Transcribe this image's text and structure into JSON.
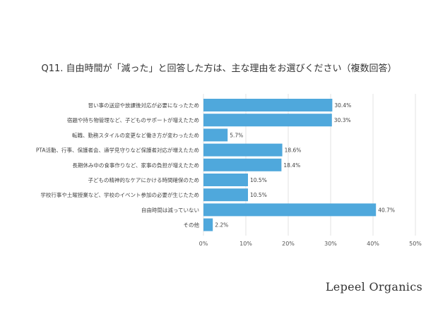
{
  "chart_data": {
    "type": "bar",
    "orientation": "horizontal",
    "title": "Q11. 自由時間が「減った」と回答した方は、主な理由をお選びください（複数回答）",
    "categories": [
      "習い事の送迎や放課後対応が必要になったため",
      "宿題や持ち物管理など、子どものサポートが増えたため",
      "転職、勤務スタイルの変更など働き方が変わったため",
      "PTA活動、行事、保護者会、通学見守りなど保護者対応が増えたため",
      "長期休み中の食事作りなど、家事の負担が増えたため",
      "子どもの精神的なケアにかける時間確保のため",
      "学校行事や土曜授業など、学校のイベント参加の必要が生じたため",
      "自由時間は減っていない",
      "その他"
    ],
    "values": [
      30.4,
      30.3,
      5.7,
      18.6,
      18.4,
      10.5,
      10.5,
      40.7,
      2.2
    ],
    "value_labels": [
      "30.4%",
      "30.3%",
      "5.7%",
      "18.6%",
      "18.4%",
      "10.5%",
      "10.5%",
      "40.7%",
      "2.2%"
    ],
    "xlim": [
      0,
      50
    ],
    "ticks": [
      0,
      10,
      20,
      30,
      40,
      50
    ],
    "tick_labels": [
      "0%",
      "10%",
      "20%",
      "30%",
      "40%",
      "50%"
    ],
    "bar_color": "#4fa8dc",
    "grid": true,
    "legend": "none"
  },
  "brand": "Lepeel Organics"
}
